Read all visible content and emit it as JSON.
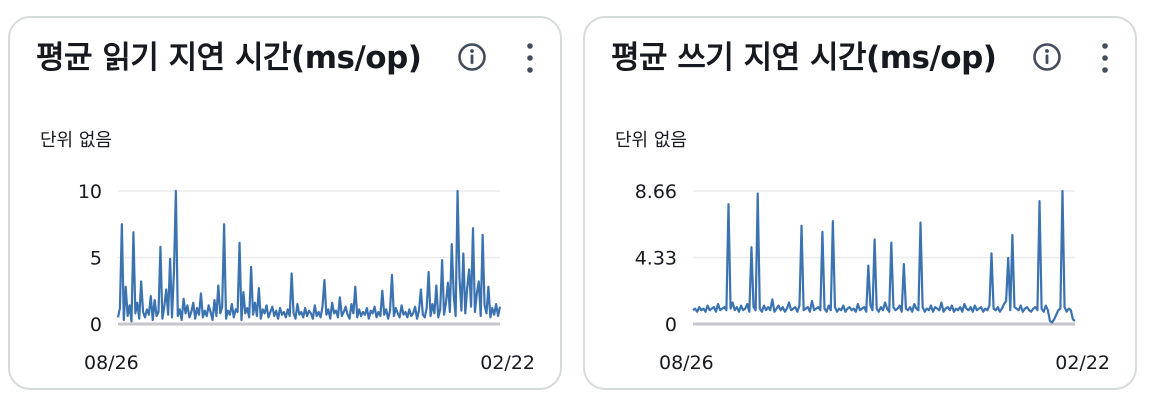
{
  "widgets": [
    {
      "title": "평균 읽기 지연 시간(ms/op)",
      "unit_label": "단위 없음",
      "info_icon": "info-circle-icon",
      "menu_icon": "vertical-ellipsis-icon",
      "chart_data": {
        "type": "line",
        "title": "평균 읽기 지연 시간(ms/op)",
        "ylabel": "단위 없음",
        "xlabel": "",
        "ylim": [
          0,
          10
        ],
        "y_ticks": [
          "10",
          "5",
          "0"
        ],
        "y_tick_values": [
          10,
          5,
          0
        ],
        "x_tick_labels": [
          "08/26",
          "02/22"
        ],
        "grid": true,
        "line_color": "#3b72b0",
        "series": [
          {
            "values": [
              0.5,
              1.2,
              7.5,
              0.3,
              2.8,
              0.6,
              1.4,
              0.2,
              6.9,
              0.8,
              1.6,
              0.4,
              3.2,
              0.9,
              0.5,
              1.1,
              0.7,
              2.1,
              0.3,
              1.8,
              0.6,
              0.9,
              5.8,
              0.4,
              1.3,
              2.6,
              0.7,
              4.9,
              0.5,
              3.9,
              10,
              0.6,
              1.1,
              0.3,
              1.9,
              0.8,
              1.4,
              0.5,
              0.9,
              1.6,
              0.4,
              1.2,
              0.7,
              2.3,
              0.5,
              1.0,
              0.6,
              1.4,
              0.9,
              0.3,
              1.8,
              0.6,
              2.9,
              0.8,
              1.3,
              7.5,
              0.4,
              1.0,
              0.7,
              1.5,
              0.5,
              1.1,
              0.9,
              6.1,
              0.3,
              2.4,
              0.8,
              1.2,
              0.5,
              4.3,
              0.7,
              1.6,
              0.6,
              2.7,
              0.4,
              1.1,
              0.8,
              1.4,
              0.5,
              0.9,
              1.3,
              0.6,
              1.0,
              0.4,
              1.2,
              0.7,
              0.9,
              0.5,
              1.1,
              0.6,
              3.8,
              0.8,
              0.4,
              1.5,
              0.7,
              0.9,
              0.5,
              1.2,
              0.6,
              1.0,
              0.8,
              0.4,
              1.4,
              0.6,
              0.9,
              0.5,
              1.3,
              3.3,
              0.7,
              1.1,
              0.4,
              1.6,
              0.8,
              1.0,
              0.5,
              2.0,
              0.6,
              0.9,
              1.3,
              0.7,
              0.4,
              1.5,
              0.8,
              2.8,
              0.5,
              1.1,
              0.6,
              0.9,
              0.7,
              1.2,
              0.4,
              1.0,
              0.8,
              1.3,
              0.5,
              0.9,
              0.6,
              2.5,
              0.7,
              1.1,
              0.4,
              1.0,
              3.7,
              0.6,
              1.2,
              0.8,
              0.5,
              1.4,
              0.7,
              0.9,
              0.5,
              1.1,
              0.6,
              0.8,
              1.3,
              0.4,
              1.0,
              2.6,
              0.7,
              0.5,
              1.2,
              3.9,
              0.6,
              1.5,
              0.8,
              2.9,
              0.5,
              1.1,
              4.8,
              0.7,
              1.6,
              3.1,
              0.9,
              6.0,
              2.2,
              0.6,
              10,
              3.5,
              1.0,
              5.3,
              0.8,
              2.7,
              4.1,
              1.3,
              7.2,
              0.9,
              2.3,
              3.2,
              0.6,
              6.7,
              1.4,
              0.8,
              2.8,
              0.5,
              1.2,
              0.7,
              1.5,
              0.6,
              1.3
            ]
          }
        ]
      }
    },
    {
      "title": "평균 쓰기 지연 시간(ms/op)",
      "unit_label": "단위 없음",
      "info_icon": "info-circle-icon",
      "menu_icon": "vertical-ellipsis-icon",
      "chart_data": {
        "type": "line",
        "title": "평균 쓰기 지연 시간(ms/op)",
        "ylabel": "단위 없음",
        "xlabel": "",
        "ylim": [
          0,
          8.66
        ],
        "y_ticks": [
          "8.66",
          "4.33",
          "0"
        ],
        "y_tick_values": [
          8.66,
          4.33,
          0
        ],
        "x_tick_labels": [
          "08/26",
          "02/22"
        ],
        "grid": true,
        "line_color": "#3b72b0",
        "series": [
          {
            "values": [
              0.9,
              1.0,
              0.8,
              1.1,
              0.9,
              1.0,
              0.8,
              1.2,
              0.9,
              1.0,
              1.1,
              0.8,
              1.3,
              0.9,
              1.0,
              1.1,
              0.9,
              7.8,
              1.0,
              1.4,
              0.9,
              1.1,
              0.8,
              1.2,
              0.9,
              1.0,
              1.3,
              0.8,
              5.0,
              1.1,
              0.9,
              8.5,
              1.0,
              0.8,
              1.2,
              0.9,
              1.1,
              0.9,
              1.6,
              0.8,
              1.0,
              1.2,
              0.9,
              1.1,
              0.8,
              1.0,
              1.4,
              0.9,
              1.0,
              1.1,
              0.8,
              1.2,
              6.4,
              0.9,
              1.0,
              1.1,
              0.8,
              1.5,
              0.9,
              1.0,
              1.1,
              0.9,
              6.0,
              1.0,
              0.8,
              1.2,
              0.9,
              6.7,
              1.1,
              0.8,
              1.0,
              0.9,
              1.2,
              0.8,
              1.0,
              1.1,
              0.9,
              1.0,
              0.8,
              1.3,
              0.9,
              1.0,
              1.1,
              0.8,
              3.8,
              1.2,
              0.9,
              5.5,
              1.0,
              0.8,
              1.1,
              0.9,
              1.4,
              1.0,
              0.8,
              5.3,
              1.1,
              0.9,
              1.0,
              1.2,
              0.8,
              3.9,
              1.0,
              0.9,
              1.1,
              0.8,
              1.3,
              1.0,
              0.9,
              6.6,
              1.1,
              0.8,
              1.0,
              0.9,
              1.2,
              0.8,
              1.1,
              1.0,
              0.9,
              1.4,
              0.8,
              1.0,
              1.1,
              0.9,
              1.2,
              0.8,
              1.0,
              0.9,
              1.1,
              0.8,
              1.3,
              1.0,
              0.9,
              1.1,
              0.8,
              1.2,
              0.9,
              1.0,
              1.1,
              0.8,
              1.0,
              0.9,
              1.2,
              4.6,
              1.0,
              0.9,
              1.1,
              0.8,
              1.0,
              1.3,
              1.5,
              4.3,
              0.9,
              5.8,
              1.1,
              1.0,
              0.9,
              1.2,
              0.8,
              1.0,
              1.1,
              0.9,
              0.8,
              1.0,
              1.1,
              0.9,
              8.0,
              1.0,
              0.8,
              1.2,
              0.9,
              0.2,
              0.1,
              0.3,
              0.6,
              0.9,
              1.0,
              8.66,
              1.1,
              0.8,
              1.0,
              0.9,
              0.3,
              0.2
            ]
          }
        ]
      }
    }
  ]
}
